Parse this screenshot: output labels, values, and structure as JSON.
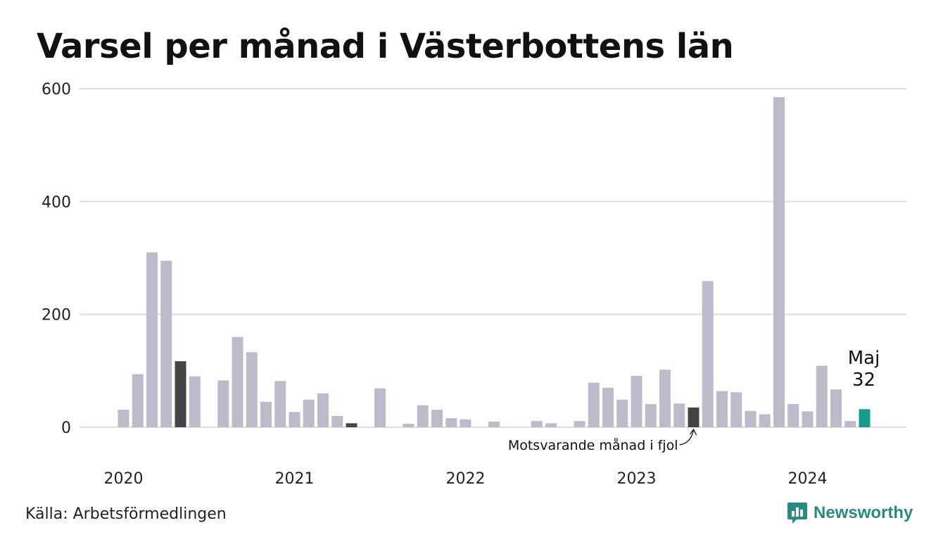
{
  "chart_data": {
    "type": "bar",
    "title": "Varsel per månad i Västerbottens län",
    "xlabel": "",
    "ylabel": "",
    "ylim": [
      0,
      600
    ],
    "yticks": [
      0,
      200,
      400,
      600
    ],
    "x_tick_labels": [
      "2020",
      "2021",
      "2022",
      "2023",
      "2024"
    ],
    "grid": true,
    "legend": "none",
    "colors": {
      "default": "#bcbbc9",
      "highlight": "#444444",
      "latest": "#1a9a8c",
      "grid": "#dddddd"
    },
    "categories": [
      "2020-01",
      "2020-02",
      "2020-03",
      "2020-04",
      "2020-05",
      "2020-06",
      "2020-07",
      "2020-08",
      "2020-09",
      "2020-10",
      "2020-11",
      "2020-12",
      "2021-01",
      "2021-02",
      "2021-03",
      "2021-04",
      "2021-05",
      "2021-06",
      "2021-07",
      "2021-08",
      "2021-09",
      "2021-10",
      "2021-11",
      "2021-12",
      "2022-01",
      "2022-02",
      "2022-03",
      "2022-04",
      "2022-05",
      "2022-06",
      "2022-07",
      "2022-08",
      "2022-09",
      "2022-10",
      "2022-11",
      "2022-12",
      "2023-01",
      "2023-02",
      "2023-03",
      "2023-04",
      "2023-05",
      "2023-06",
      "2023-07",
      "2023-08",
      "2023-09",
      "2023-10",
      "2023-11",
      "2023-12",
      "2024-01",
      "2024-02",
      "2024-03",
      "2024-04",
      "2024-05"
    ],
    "values": [
      31,
      94,
      310,
      295,
      117,
      90,
      0,
      83,
      160,
      133,
      45,
      82,
      27,
      49,
      60,
      20,
      7,
      0,
      69,
      0,
      6,
      39,
      31,
      16,
      14,
      0,
      10,
      0,
      0,
      11,
      7,
      0,
      11,
      79,
      70,
      49,
      91,
      41,
      102,
      42,
      35,
      259,
      64,
      62,
      29,
      23,
      585,
      41,
      28,
      109,
      67,
      11,
      32
    ],
    "highlight_categories": [
      "2020-05",
      "2021-05",
      "2023-05"
    ],
    "latest_category": "2024-05",
    "annotations": [
      {
        "text": "Motsvarande månad i fjol",
        "target": "2023-05"
      }
    ],
    "latest_label": {
      "month": "Maj",
      "value": "32"
    }
  },
  "source": "Källa: Arbetsförmedlingen",
  "brand": "Newsworthy",
  "icons": {
    "brand_logo": "chart-speech-bubble-icon"
  }
}
